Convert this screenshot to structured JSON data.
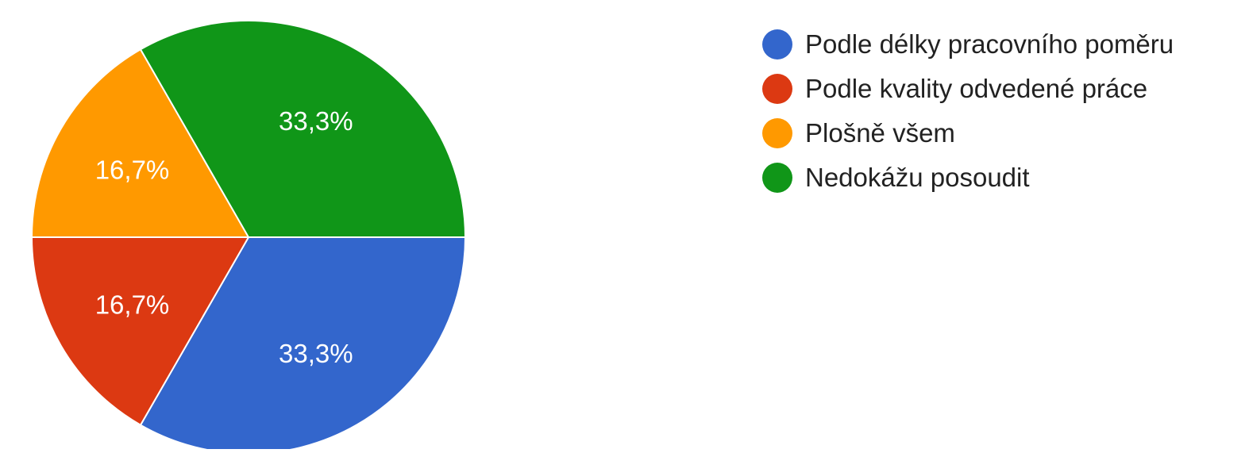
{
  "chart_data": {
    "type": "pie",
    "slices": [
      {
        "name": "Podle délky pracovního poměru",
        "value": 33.3,
        "label": "33,3%",
        "color": "#3366cc"
      },
      {
        "name": "Podle kvality odvedené práce",
        "value": 16.7,
        "label": "16,7%",
        "color": "#dc3912"
      },
      {
        "name": "Plošně všem",
        "value": 16.7,
        "label": "16,7%",
        "color": "#ff9900"
      },
      {
        "name": "Nedokážu posoudit",
        "value": 33.3,
        "label": "33,3%",
        "color": "#109618"
      }
    ],
    "legend_position": "right"
  }
}
